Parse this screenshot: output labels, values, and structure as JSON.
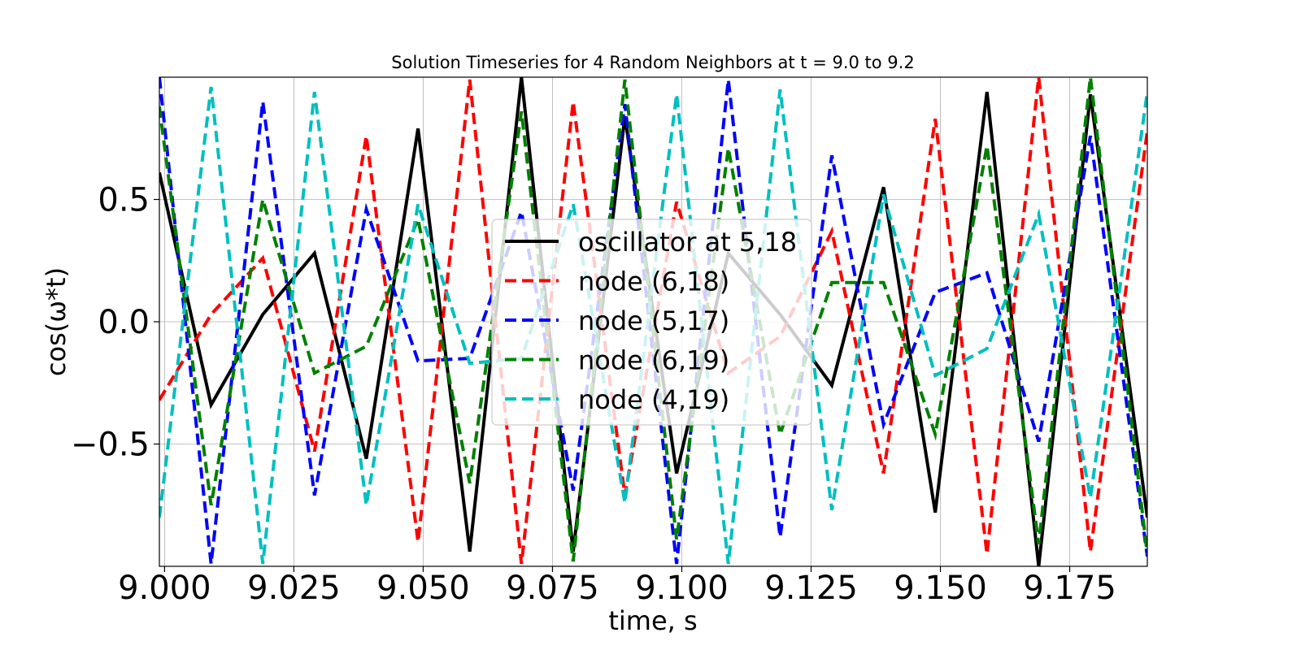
{
  "chart_data": {
    "type": "line",
    "title": "Solution Timeseries for 4 Random Neighbors at t = 9.0 to 9.2",
    "xlabel": "time, s",
    "ylabel": "cos(ω*t)",
    "xlim": [
      8.999,
      9.19
    ],
    "ylim": [
      -1.0,
      1.0
    ],
    "grid": true,
    "legend_position": "center",
    "x": [
      8.999,
      9.009,
      9.019,
      9.029,
      9.039,
      9.049,
      9.059,
      9.069,
      9.079,
      9.089,
      9.099,
      9.109,
      9.119,
      9.129,
      9.139,
      9.149,
      9.159,
      9.169,
      9.179,
      9.19
    ],
    "xticks": [
      {
        "value": 9.0,
        "label": "9.000"
      },
      {
        "value": 9.025,
        "label": "9.025"
      },
      {
        "value": 9.05,
        "label": "9.050"
      },
      {
        "value": 9.075,
        "label": "9.075"
      },
      {
        "value": 9.1,
        "label": "9.100"
      },
      {
        "value": 9.125,
        "label": "9.125"
      },
      {
        "value": 9.15,
        "label": "9.150"
      },
      {
        "value": 9.175,
        "label": "9.175"
      }
    ],
    "yticks": [
      {
        "value": 0.5,
        "label": "0.5"
      },
      {
        "value": 0.0,
        "label": "0.0"
      },
      {
        "value": -0.5,
        "label": "−0.5"
      }
    ],
    "series": [
      {
        "name": "oscillator at 5,18",
        "color": "#000000",
        "dash": "solid",
        "values": [
          0.61,
          -0.34,
          0.03,
          0.28,
          -0.56,
          0.79,
          -0.94,
          1.0,
          -0.94,
          0.84,
          -0.62,
          0.28,
          0.03,
          -0.26,
          0.55,
          -0.78,
          0.94,
          -1.0,
          0.93,
          -0.8
        ]
      },
      {
        "name": "node (6,18)",
        "color": "#ff0000",
        "dash": "dashed",
        "values": [
          -0.32,
          0.03,
          0.26,
          -0.53,
          0.76,
          -0.9,
          0.99,
          -0.99,
          0.9,
          -0.71,
          0.49,
          -0.21,
          -0.06,
          0.37,
          -0.62,
          0.83,
          -0.95,
          1.0,
          -0.94,
          0.78
        ]
      },
      {
        "name": "node (5,17)",
        "color": "#0000ff",
        "dash": "dashed",
        "values": [
          1.0,
          -0.99,
          0.9,
          -0.71,
          0.46,
          -0.16,
          -0.15,
          0.45,
          -0.69,
          0.89,
          -0.99,
          0.99,
          -0.88,
          0.68,
          -0.42,
          0.12,
          0.2,
          -0.49,
          0.76,
          -0.96
        ]
      },
      {
        "name": "node (6,19)",
        "color": "#008000",
        "dash": "dashed",
        "values": [
          0.88,
          -0.75,
          0.5,
          -0.21,
          -0.1,
          0.42,
          -0.66,
          0.86,
          -0.98,
          0.99,
          -0.89,
          0.71,
          -0.46,
          0.16,
          0.16,
          -0.46,
          0.72,
          -0.91,
          1.0,
          -0.95
        ]
      },
      {
        "name": "node (4,19)",
        "color": "#00bfbf",
        "dash": "dashed",
        "values": [
          -0.8,
          0.96,
          -0.99,
          0.94,
          -0.75,
          0.48,
          -0.17,
          -0.15,
          0.48,
          -0.74,
          0.93,
          -0.99,
          0.95,
          -0.77,
          0.52,
          -0.22,
          -0.11,
          0.44,
          -0.72,
          0.94
        ]
      }
    ]
  }
}
